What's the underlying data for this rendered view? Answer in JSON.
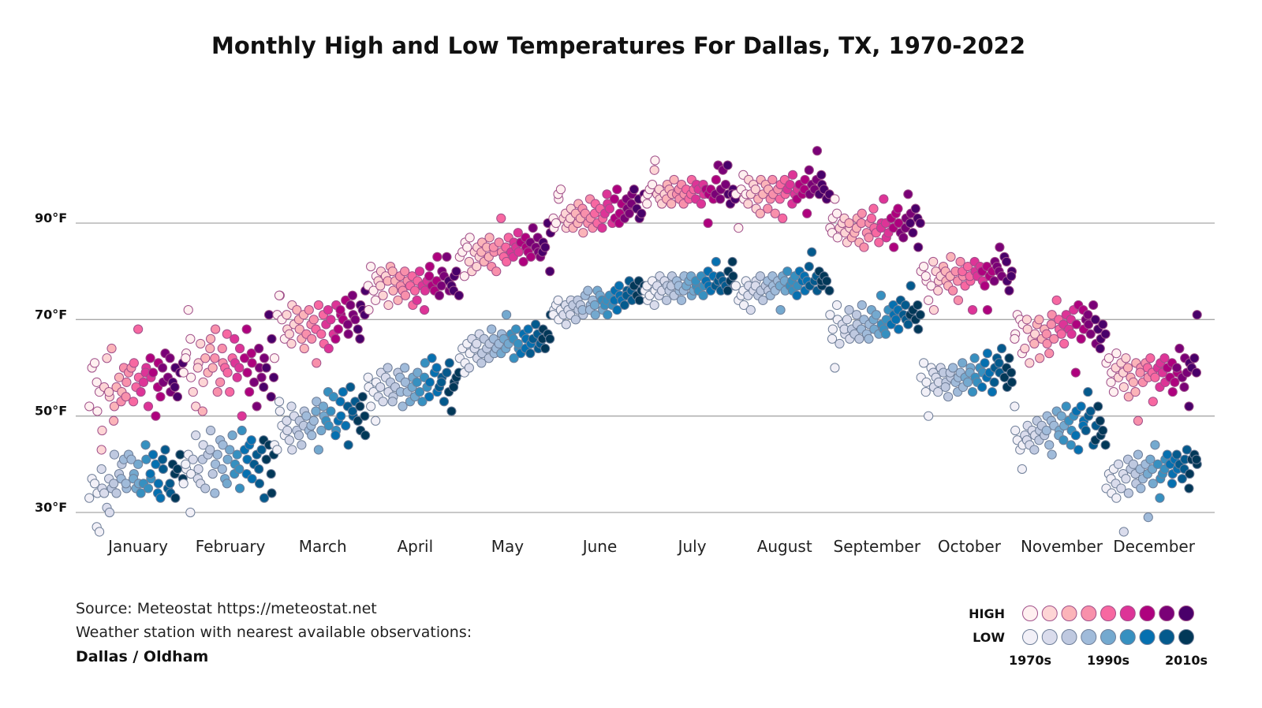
{
  "chart_data": {
    "type": "scatter",
    "title": "Monthly High and Low Temperatures For Dallas, TX, 1970-2022",
    "y_ticks": [
      "30°F",
      "50°F",
      "70°F",
      "90°F"
    ],
    "y_tick_values": [
      30,
      50,
      70,
      90
    ],
    "ylim": [
      25,
      106
    ],
    "grid": "horizontal",
    "years": [
      1970,
      2022
    ],
    "months": [
      "January",
      "February",
      "March",
      "April",
      "May",
      "June",
      "July",
      "August",
      "September",
      "October",
      "November",
      "December"
    ],
    "legend": {
      "placement": "bottom-right",
      "high_label": "HIGH",
      "low_label": "LOW",
      "decade_labels": [
        "1970s",
        "1990s",
        "2010s"
      ]
    },
    "colors": {
      "high": [
        "#fff0f0",
        "#fdd5d5",
        "#fbb4b9",
        "#f890ab",
        "#f768a1",
        "#dd3497",
        "#ae017e",
        "#7a0177",
        "#49006a"
      ],
      "low": [
        "#f2f0f7",
        "#dadcec",
        "#bfc9e0",
        "#a0bbda",
        "#74a9cf",
        "#3690c0",
        "#0570b0",
        "#045a8d",
        "#023858"
      ]
    },
    "high": [
      [
        52,
        60,
        61,
        51,
        57,
        55,
        47,
        43,
        56,
        62,
        54,
        55,
        64,
        52,
        49,
        56,
        58,
        55,
        53,
        60,
        57,
        54,
        59,
        60,
        61,
        53,
        56,
        58,
        68,
        55,
        57,
        60,
        59,
        52,
        58,
        62,
        59,
        50,
        61,
        56,
        54,
        57,
        60,
        63,
        58,
        55,
        62,
        57,
        60,
        56,
        54,
        59,
        61
      ],
      [
        59,
        63,
        62,
        72,
        58,
        66,
        55,
        52,
        61,
        60,
        65,
        57,
        51,
        62,
        59,
        66,
        64,
        60,
        68,
        62,
        55,
        57,
        61,
        64,
        60,
        59,
        67,
        55,
        62,
        61,
        66,
        58,
        64,
        60,
        50,
        62,
        59,
        68,
        55,
        61,
        63,
        57,
        52,
        60,
        64,
        58,
        62,
        56,
        60,
        71,
        66,
        54,
        58
      ],
      [
        62,
        71,
        75,
        75,
        70,
        66,
        68,
        71,
        67,
        73,
        65,
        69,
        72,
        68,
        70,
        66,
        64,
        71,
        67,
        72,
        66,
        69,
        70,
        61,
        68,
        73,
        67,
        65,
        71,
        69,
        64,
        72,
        70,
        67,
        73,
        66,
        68,
        71,
        72,
        70,
        74,
        67,
        69,
        73,
        71,
        75,
        70,
        68,
        73,
        66,
        72,
        76,
        71
      ],
      [
        72,
        77,
        81,
        76,
        79,
        74,
        78,
        80,
        77,
        75,
        79,
        73,
        78,
        81,
        76,
        80,
        78,
        74,
        77,
        79,
        76,
        75,
        80,
        78,
        77,
        73,
        79,
        76,
        78,
        74,
        80,
        77,
        76,
        72,
        78,
        81,
        79,
        77,
        76,
        83,
        78,
        75,
        80,
        77,
        79,
        83,
        76,
        78,
        77,
        79,
        76,
        80,
        75
      ],
      [
        83,
        84,
        86,
        79,
        85,
        87,
        82,
        80,
        84,
        85,
        81,
        83,
        86,
        84,
        82,
        85,
        87,
        83,
        81,
        84,
        85,
        80,
        86,
        84,
        91,
        83,
        82,
        85,
        87,
        84,
        86,
        83,
        85,
        84,
        88,
        86,
        82,
        85,
        87,
        84,
        83,
        86,
        89,
        85,
        84,
        87,
        83,
        86,
        84,
        85,
        90,
        88,
        80
      ],
      [
        89,
        91,
        90,
        95,
        96,
        97,
        91,
        89,
        92,
        90,
        93,
        91,
        89,
        92,
        94,
        90,
        91,
        88,
        93,
        92,
        90,
        91,
        95,
        89,
        94,
        92,
        90,
        93,
        91,
        89,
        92,
        94,
        96,
        93,
        90,
        91,
        95,
        97,
        92,
        90,
        94,
        91,
        93,
        95,
        92,
        96,
        94,
        97,
        93,
        91,
        95,
        92,
        96
      ],
      [
        95,
        96,
        94,
        97,
        98,
        103,
        101,
        96,
        95,
        97,
        94,
        96,
        98,
        95,
        97,
        96,
        94,
        99,
        96,
        95,
        97,
        98,
        96,
        94,
        97,
        95,
        99,
        96,
        97,
        98,
        95,
        97,
        94,
        96,
        98,
        97,
        96,
        90,
        97,
        95,
        99,
        96,
        102,
        97,
        95,
        101,
        98,
        96,
        102,
        94,
        97,
        96,
        95
      ],
      [
        96,
        89,
        97,
        95,
        100,
        96,
        99,
        94,
        96,
        98,
        93,
        97,
        95,
        99,
        92,
        96,
        98,
        97,
        93,
        95,
        96,
        99,
        92,
        97,
        98,
        95,
        91,
        96,
        99,
        97,
        98,
        100,
        94,
        96,
        97,
        95,
        98,
        96,
        99,
        97,
        92,
        96,
        101,
        98,
        97,
        105,
        99,
        96,
        98,
        100,
        97,
        95,
        96
      ],
      [
        89,
        91,
        88,
        95,
        87,
        92,
        89,
        90,
        88,
        91,
        86,
        89,
        90,
        87,
        88,
        91,
        89,
        86,
        92,
        90,
        85,
        88,
        90,
        87,
        91,
        89,
        93,
        88,
        86,
        90,
        89,
        95,
        87,
        90,
        88,
        91,
        85,
        89,
        92,
        90,
        93,
        88,
        87,
        91,
        89,
        96,
        92,
        90,
        88,
        93,
        85,
        91,
        90
      ],
      [
        80,
        81,
        78,
        79,
        74,
        77,
        72,
        82,
        80,
        78,
        76,
        79,
        81,
        78,
        80,
        77,
        83,
        79,
        76,
        80,
        74,
        78,
        82,
        79,
        80,
        77,
        81,
        78,
        79,
        72,
        80,
        82,
        79,
        81,
        78,
        80,
        77,
        72,
        81,
        79,
        80,
        82,
        78,
        81,
        85,
        80,
        79,
        83,
        78,
        82,
        76,
        80,
        79
      ],
      [
        67,
        66,
        71,
        70,
        69,
        63,
        64,
        68,
        70,
        61,
        66,
        67,
        65,
        69,
        62,
        70,
        66,
        68,
        65,
        67,
        63,
        71,
        69,
        66,
        74,
        68,
        70,
        67,
        65,
        69,
        71,
        68,
        67,
        70,
        72,
        69,
        59,
        73,
        66,
        68,
        72,
        70,
        69,
        71,
        67,
        73,
        65,
        70,
        68,
        66,
        64,
        69,
        67
      ],
      [
        61,
        62,
        59,
        57,
        55,
        63,
        60,
        58,
        61,
        56,
        59,
        62,
        54,
        60,
        58,
        57,
        61,
        55,
        49,
        60,
        59,
        57,
        61,
        58,
        60,
        62,
        53,
        59,
        58,
        60,
        61,
        56,
        59,
        57,
        62,
        60,
        58,
        55,
        61,
        57,
        59,
        60,
        64,
        58,
        62,
        56,
        59,
        61,
        52,
        60,
        62,
        71,
        59
      ]
    ],
    "low": [
      [
        33,
        37,
        36,
        34,
        27,
        26,
        35,
        39,
        34,
        31,
        30,
        37,
        35,
        42,
        36,
        34,
        38,
        40,
        37,
        41,
        35,
        36,
        42,
        41,
        38,
        37,
        35,
        36,
        40,
        34,
        36,
        41,
        44,
        35,
        37,
        38,
        42,
        40,
        36,
        34,
        33,
        39,
        41,
        43,
        35,
        34,
        36,
        40,
        33,
        38,
        39,
        42,
        37
      ],
      [
        36,
        39,
        40,
        42,
        38,
        30,
        41,
        46,
        39,
        37,
        36,
        44,
        41,
        35,
        42,
        47,
        43,
        38,
        40,
        34,
        42,
        45,
        44,
        39,
        37,
        41,
        36,
        43,
        46,
        40,
        38,
        42,
        35,
        39,
        47,
        43,
        41,
        38,
        44,
        37,
        45,
        40,
        42,
        36,
        39,
        43,
        33,
        45,
        41,
        44,
        34,
        38,
        42
      ],
      [
        44,
        43,
        51,
        53,
        48,
        46,
        47,
        49,
        45,
        43,
        52,
        50,
        47,
        49,
        46,
        44,
        51,
        48,
        50,
        47,
        46,
        48,
        49,
        53,
        51,
        43,
        47,
        50,
        52,
        49,
        48,
        55,
        51,
        54,
        47,
        46,
        49,
        50,
        53,
        55,
        48,
        44,
        52,
        56,
        50,
        51,
        53,
        49,
        47,
        52,
        54,
        46,
        50
      ],
      [
        56,
        58,
        52,
        55,
        57,
        49,
        54,
        59,
        56,
        53,
        58,
        55,
        60,
        57,
        54,
        53,
        56,
        59,
        55,
        58,
        52,
        57,
        60,
        55,
        53,
        58,
        56,
        54,
        59,
        57,
        55,
        53,
        61,
        58,
        56,
        57,
        54,
        62,
        59,
        55,
        60,
        56,
        58,
        57,
        53,
        59,
        61,
        55,
        51,
        57,
        56,
        58,
        59
      ],
      [
        62,
        64,
        61,
        59,
        65,
        63,
        60,
        66,
        64,
        62,
        65,
        67,
        63,
        61,
        66,
        64,
        65,
        62,
        68,
        63,
        66,
        64,
        65,
        67,
        63,
        66,
        71,
        64,
        65,
        67,
        62,
        66,
        68,
        64,
        65,
        63,
        67,
        66,
        64,
        68,
        65,
        63,
        66,
        69,
        64,
        67,
        65,
        68,
        66,
        64,
        67,
        71,
        66
      ],
      [
        72,
        71,
        73,
        70,
        74,
        72,
        71,
        69,
        73,
        72,
        74,
        71,
        73,
        70,
        72,
        74,
        73,
        71,
        72,
        75,
        76,
        73,
        72,
        74,
        71,
        73,
        76,
        75,
        72,
        74,
        73,
        71,
        74,
        75,
        73,
        76,
        74,
        72,
        75,
        77,
        74,
        73,
        76,
        75,
        78,
        74,
        76,
        77,
        75,
        74,
        78,
        76,
        77
      ],
      [
        76,
        74,
        77,
        75,
        78,
        76,
        73,
        77,
        79,
        75,
        76,
        78,
        77,
        74,
        76,
        79,
        77,
        75,
        78,
        76,
        77,
        74,
        79,
        76,
        77,
        78,
        75,
        79,
        76,
        77,
        78,
        76,
        79,
        77,
        75,
        78,
        77,
        80,
        76,
        79,
        82,
        77,
        78,
        76,
        79,
        78,
        77,
        80,
        76,
        78,
        79,
        82,
        77
      ],
      [
        77,
        74,
        75,
        73,
        76,
        78,
        77,
        75,
        72,
        76,
        78,
        77,
        75,
        76,
        79,
        74,
        77,
        76,
        78,
        75,
        77,
        79,
        76,
        78,
        72,
        77,
        79,
        76,
        78,
        80,
        77,
        76,
        78,
        79,
        77,
        75,
        80,
        78,
        76,
        79,
        78,
        77,
        81,
        84,
        78,
        76,
        79,
        80,
        77,
        78,
        79,
        78,
        76
      ],
      [
        71,
        68,
        66,
        60,
        70,
        73,
        65,
        69,
        67,
        68,
        70,
        66,
        72,
        68,
        67,
        69,
        71,
        66,
        73,
        68,
        70,
        67,
        69,
        66,
        72,
        68,
        70,
        71,
        67,
        69,
        75,
        68,
        70,
        67,
        72,
        69,
        71,
        73,
        70,
        68,
        72,
        74,
        71,
        70,
        73,
        69,
        77,
        71,
        72,
        70,
        68,
        73,
        71
      ],
      [
        58,
        61,
        57,
        55,
        50,
        60,
        56,
        59,
        58,
        57,
        55,
        60,
        59,
        57,
        56,
        54,
        58,
        59,
        60,
        57,
        58,
        55,
        59,
        56,
        61,
        58,
        57,
        60,
        59,
        55,
        58,
        62,
        57,
        60,
        59,
        56,
        61,
        63,
        58,
        59,
        55,
        60,
        57,
        62,
        59,
        61,
        64,
        58,
        56,
        60,
        62,
        57,
        59
      ],
      [
        47,
        52,
        45,
        43,
        44,
        39,
        46,
        48,
        45,
        44,
        47,
        46,
        43,
        49,
        47,
        45,
        48,
        46,
        50,
        47,
        44,
        42,
        49,
        48,
        51,
        47,
        46,
        50,
        48,
        45,
        52,
        49,
        47,
        44,
        50,
        51,
        46,
        43,
        52,
        49,
        48,
        47,
        50,
        55,
        51,
        44,
        48,
        45,
        52,
        46,
        49,
        47,
        44
      ],
      [
        35,
        38,
        34,
        37,
        39,
        33,
        36,
        40,
        35,
        26,
        38,
        37,
        34,
        41,
        39,
        40,
        36,
        38,
        42,
        35,
        39,
        37,
        40,
        29,
        38,
        41,
        36,
        39,
        44,
        40,
        37,
        33,
        38,
        41,
        39,
        42,
        40,
        38,
        36,
        41,
        39,
        42,
        40,
        37,
        41,
        39,
        43,
        38,
        35,
        41,
        42,
        40,
        41
      ]
    ]
  },
  "source": {
    "line1": "Source: Meteostat https://meteostat.net",
    "line2": "Weather station with nearest available observations:",
    "station": "Dallas / Oldham"
  }
}
